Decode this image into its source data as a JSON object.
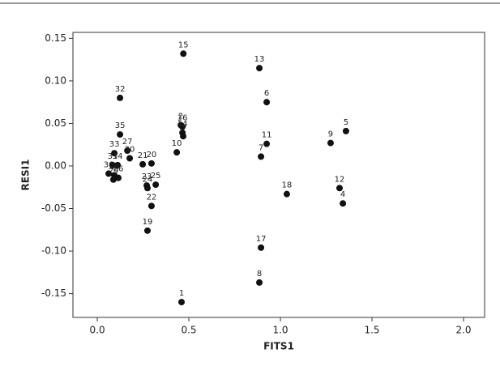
{
  "chart_data": {
    "type": "scatter",
    "x_label": "FITS1",
    "y_label": "RESI1",
    "xlim": [
      -0.133,
      2.115
    ],
    "ylim": [
      -0.178,
      0.157
    ],
    "xticks": [
      {
        "value": 0,
        "label": "0.0"
      },
      {
        "value": 0.5,
        "label": "0.5"
      },
      {
        "value": 1,
        "label": "1.0"
      },
      {
        "value": 1.5,
        "label": "1.5"
      },
      {
        "value": 2,
        "label": "2.0"
      }
    ],
    "yticks": [
      0.15,
      {
        "value": 0.1,
        "label": "0.10"
      },
      0.05,
      {
        "value": 0,
        "label": "0.00"
      },
      -0.05,
      {
        "value": -0.1,
        "label": "-0.10"
      },
      -0.15
    ],
    "color": "#111111",
    "point_labels": [
      "1",
      "15",
      "13",
      "6",
      "32",
      "35",
      "2",
      "16",
      "14",
      "3",
      "5",
      "9",
      "11",
      "7",
      "10",
      "18",
      "12",
      "4",
      "17",
      "8",
      "19",
      "22",
      "20",
      "21",
      "23",
      "24",
      "25",
      "27",
      "30",
      "33",
      "36",
      "31",
      "34",
      "28",
      "26",
      "29"
    ],
    "x": [
      0.46,
      0.47,
      0.885,
      0.925,
      0.124,
      0.124,
      0.456,
      0.465,
      0.465,
      0.469,
      1.358,
      1.274,
      0.925,
      0.894,
      0.434,
      1.035,
      1.323,
      1.341,
      0.894,
      0.885,
      0.274,
      0.296,
      0.296,
      0.248,
      0.27,
      0.274,
      0.319,
      0.164,
      0.177,
      0.093,
      0.062,
      0.084,
      0.111,
      0.093,
      0.115,
      0.088
    ],
    "values": [
      -0.16,
      0.132,
      0.115,
      0.075,
      0.08,
      0.037,
      0.048,
      0.046,
      0.039,
      0.035,
      0.041,
      0.027,
      0.026,
      0.011,
      0.016,
      -0.033,
      -0.026,
      -0.044,
      -0.096,
      -0.137,
      -0.076,
      -0.047,
      0.003,
      0.002,
      -0.023,
      -0.026,
      -0.022,
      0.018,
      0.009,
      0.015,
      -0.009,
      0.001,
      0.001,
      -0.011,
      -0.014,
      -0.016
    ]
  }
}
